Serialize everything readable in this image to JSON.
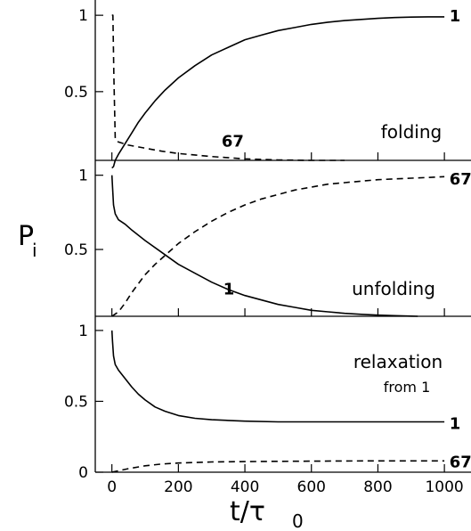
{
  "chart_data": {
    "type": "line",
    "xlabel": "t/τ",
    "xlabel_subscript": "0",
    "ylabel": "P",
    "ylabel_subscript": "i",
    "xlim": [
      -50,
      1080
    ],
    "x_ticks": [
      0,
      200,
      400,
      600,
      800,
      1000
    ],
    "panels": [
      {
        "id": "folding",
        "label": "folding",
        "sublabel": "",
        "ylim": [
          0.05,
          1.1
        ],
        "y_ticks": [
          {
            "v": 0.5,
            "t": "0.5"
          },
          {
            "v": 1,
            "t": "1"
          }
        ],
        "series": [
          {
            "name": "1",
            "style": "solid",
            "x": [
              0,
              5,
              10,
              20,
              40,
              60,
              80,
              100,
              130,
              160,
              200,
              250,
              300,
              350,
              400,
              450,
              500,
              550,
              600,
              650,
              700,
              750,
              800,
              850,
              900,
              950,
              1000
            ],
            "y": [
              0.0,
              0.01,
              0.05,
              0.09,
              0.16,
              0.23,
              0.3,
              0.36,
              0.44,
              0.51,
              0.59,
              0.67,
              0.74,
              0.79,
              0.84,
              0.87,
              0.9,
              0.92,
              0.94,
              0.955,
              0.965,
              0.973,
              0.98,
              0.985,
              0.988,
              0.99,
              0.99
            ],
            "label_pos": [
              1015,
              1.0
            ]
          },
          {
            "name": "67",
            "style": "dashed",
            "x": [
              0,
              3,
              6,
              10,
              12,
              20,
              50,
              100,
              150,
              200,
              300,
              400,
              500,
              600,
              700
            ],
            "y": [
              1.0,
              1.0,
              0.6,
              0.2,
              0.18,
              0.17,
              0.15,
              0.13,
              0.11,
              0.095,
              0.075,
              0.06,
              0.053,
              0.05,
              0.05
            ],
            "label_pos": [
              330,
              0.18
            ]
          }
        ]
      },
      {
        "id": "unfolding",
        "label": "unfolding",
        "sublabel": "",
        "ylim": [
          0.05,
          1.1
        ],
        "y_ticks": [
          {
            "v": 0.5,
            "t": "0.5"
          },
          {
            "v": 1,
            "t": "1"
          }
        ],
        "series": [
          {
            "name": "1",
            "style": "solid",
            "x": [
              0,
              2,
              5,
              10,
              20,
              40,
              60,
              100,
              150,
              200,
              250,
              300,
              350,
              400,
              450,
              500,
              550,
              600,
              650,
              700,
              750,
              800,
              850,
              900,
              920
            ],
            "y": [
              1.0,
              0.92,
              0.8,
              0.74,
              0.7,
              0.67,
              0.63,
              0.56,
              0.48,
              0.4,
              0.34,
              0.28,
              0.23,
              0.19,
              0.16,
              0.13,
              0.11,
              0.09,
              0.08,
              0.07,
              0.063,
              0.058,
              0.054,
              0.051,
              0.05
            ],
            "label_pos": [
              335,
              0.24
            ]
          },
          {
            "name": "67",
            "style": "dashed",
            "x": [
              0,
              20,
              40,
              60,
              80,
              100,
              130,
              160,
              200,
              250,
              300,
              350,
              400,
              450,
              500,
              550,
              600,
              650,
              700,
              750,
              800,
              850,
              900,
              950,
              1000
            ],
            "y": [
              0.05,
              0.08,
              0.14,
              0.21,
              0.27,
              0.33,
              0.4,
              0.46,
              0.54,
              0.62,
              0.69,
              0.75,
              0.8,
              0.84,
              0.87,
              0.9,
              0.92,
              0.94,
              0.95,
              0.96,
              0.97,
              0.975,
              0.98,
              0.985,
              0.99
            ],
            "label_pos": [
              1015,
              0.98
            ]
          }
        ]
      },
      {
        "id": "relaxation",
        "label": "relaxation",
        "sublabel": "from 1",
        "ylim": [
          0.0,
          1.1
        ],
        "y_ticks": [
          {
            "v": 0,
            "t": "0"
          },
          {
            "v": 0.5,
            "t": "0.5"
          },
          {
            "v": 1,
            "t": "1"
          }
        ],
        "series": [
          {
            "name": "1",
            "style": "solid",
            "x": [
              0,
              2,
              5,
              10,
              20,
              40,
              60,
              80,
              100,
              130,
              160,
              200,
              250,
              300,
              350,
              400,
              500,
              600,
              700,
              800,
              900,
              1000
            ],
            "y": [
              1.0,
              0.92,
              0.82,
              0.76,
              0.72,
              0.66,
              0.6,
              0.55,
              0.51,
              0.46,
              0.43,
              0.4,
              0.38,
              0.37,
              0.365,
              0.36,
              0.355,
              0.355,
              0.355,
              0.355,
              0.355,
              0.355
            ],
            "label_pos": [
              1015,
              0.35
            ]
          },
          {
            "name": "67",
            "style": "dashed",
            "x": [
              0,
              20,
              50,
              100,
              150,
              200,
              300,
              400,
              500,
              600,
              700,
              800,
              900,
              1000
            ],
            "y": [
              0.0,
              0.01,
              0.025,
              0.045,
              0.058,
              0.065,
              0.072,
              0.075,
              0.077,
              0.078,
              0.079,
              0.08,
              0.08,
              0.08
            ],
            "label_pos": [
              1015,
              0.08
            ]
          }
        ]
      }
    ]
  }
}
